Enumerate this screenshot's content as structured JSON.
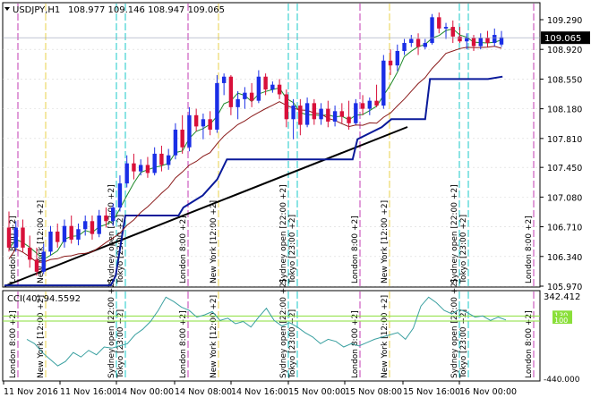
{
  "header": {
    "symbol": "USDJPY,H1",
    "ohlc": "108.977 109.146 108.947 109.065"
  },
  "cci_panel": {
    "label": "CCI(40) 94.5592",
    "scale_top": "342.412",
    "scale_bottom": "-440.000",
    "level_high": "130",
    "level_low": "100"
  },
  "price_axis": {
    "ticks": [
      "109.290",
      "108.920",
      "108.550",
      "108.180",
      "107.810",
      "107.450",
      "107.080",
      "106.710",
      "106.340",
      "105.970"
    ],
    "current_price": "109.065"
  },
  "time_axis": {
    "labels": [
      "11 Nov 2016",
      "11 Nov 16:00",
      "14 Nov 00:00",
      "14 Nov 08:00",
      "14 Nov 16:00",
      "15 Nov 00:00",
      "15 Nov 08:00",
      "15 Nov 16:00",
      "16 Nov 00:00"
    ]
  },
  "session_labels": {
    "london": "London 8:00 +2]",
    "newyork": "New York [12:00 +2]",
    "sydney": "Sydney open [22:00 +2]",
    "tokyo": "Tokyo [23:00 +2]"
  },
  "colors": {
    "bull": "#1a2ee6",
    "bear": "#d8103a",
    "ma_fast": "#1f8a2a",
    "ma_slow": "#8a1a1a",
    "step_line": "#0a1a9a",
    "trendline": "#000000",
    "london_line": "#c33bb3",
    "newyork_line": "#e8d24a",
    "sydney_line": "#18c8c8",
    "cci_line": "#3aa0a0",
    "cci_level": "#8adf3a",
    "price_box": "#000000"
  },
  "chart_data": {
    "type": "candlestick",
    "title": "USDJPY,H1",
    "ylim": [
      105.97,
      109.4
    ],
    "candles": [
      {
        "o": 106.7,
        "h": 106.9,
        "l": 106.4,
        "c": 106.45
      },
      {
        "o": 106.45,
        "h": 106.78,
        "l": 106.4,
        "c": 106.7
      },
      {
        "o": 106.7,
        "h": 106.8,
        "l": 106.4,
        "c": 106.45
      },
      {
        "o": 106.45,
        "h": 106.6,
        "l": 106.2,
        "c": 106.3
      },
      {
        "o": 106.3,
        "h": 106.45,
        "l": 106.1,
        "c": 106.15
      },
      {
        "o": 106.15,
        "h": 106.5,
        "l": 106.12,
        "c": 106.4
      },
      {
        "o": 106.4,
        "h": 106.72,
        "l": 106.35,
        "c": 106.65
      },
      {
        "o": 106.65,
        "h": 106.75,
        "l": 106.45,
        "c": 106.52
      },
      {
        "o": 106.52,
        "h": 106.8,
        "l": 106.45,
        "c": 106.72
      },
      {
        "o": 106.72,
        "h": 106.85,
        "l": 106.5,
        "c": 106.55
      },
      {
        "o": 106.55,
        "h": 106.75,
        "l": 106.48,
        "c": 106.68
      },
      {
        "o": 106.68,
        "h": 106.85,
        "l": 106.6,
        "c": 106.78
      },
      {
        "o": 106.78,
        "h": 106.85,
        "l": 106.55,
        "c": 106.62
      },
      {
        "o": 106.62,
        "h": 106.92,
        "l": 106.58,
        "c": 106.85
      },
      {
        "o": 106.85,
        "h": 106.95,
        "l": 106.7,
        "c": 106.78
      },
      {
        "o": 106.78,
        "h": 107.0,
        "l": 106.72,
        "c": 106.95
      },
      {
        "o": 106.95,
        "h": 107.35,
        "l": 106.9,
        "c": 107.25
      },
      {
        "o": 107.25,
        "h": 107.6,
        "l": 107.2,
        "c": 107.5
      },
      {
        "o": 107.5,
        "h": 107.62,
        "l": 107.3,
        "c": 107.4
      },
      {
        "o": 107.4,
        "h": 107.55,
        "l": 107.35,
        "c": 107.48
      },
      {
        "o": 107.48,
        "h": 107.58,
        "l": 107.32,
        "c": 107.38
      },
      {
        "o": 107.38,
        "h": 107.7,
        "l": 107.35,
        "c": 107.62
      },
      {
        "o": 107.62,
        "h": 107.72,
        "l": 107.4,
        "c": 107.48
      },
      {
        "o": 107.48,
        "h": 107.68,
        "l": 107.42,
        "c": 107.6
      },
      {
        "o": 107.6,
        "h": 108.0,
        "l": 107.55,
        "c": 107.92
      },
      {
        "o": 107.92,
        "h": 108.1,
        "l": 107.62,
        "c": 107.7
      },
      {
        "o": 107.7,
        "h": 108.2,
        "l": 107.65,
        "c": 108.1
      },
      {
        "o": 108.1,
        "h": 108.18,
        "l": 107.9,
        "c": 107.96
      },
      {
        "o": 107.96,
        "h": 108.12,
        "l": 107.8,
        "c": 108.05
      },
      {
        "o": 108.05,
        "h": 108.15,
        "l": 107.85,
        "c": 107.92
      },
      {
        "o": 107.92,
        "h": 108.6,
        "l": 107.88,
        "c": 108.5
      },
      {
        "o": 108.5,
        "h": 108.62,
        "l": 108.35,
        "c": 108.58
      },
      {
        "o": 108.58,
        "h": 108.6,
        "l": 108.1,
        "c": 108.2
      },
      {
        "o": 108.2,
        "h": 108.4,
        "l": 108.05,
        "c": 108.3
      },
      {
        "o": 108.3,
        "h": 108.45,
        "l": 108.18,
        "c": 108.38
      },
      {
        "o": 108.38,
        "h": 108.5,
        "l": 108.2,
        "c": 108.28
      },
      {
        "o": 108.28,
        "h": 108.66,
        "l": 108.25,
        "c": 108.58
      },
      {
        "o": 108.58,
        "h": 108.62,
        "l": 108.35,
        "c": 108.42
      },
      {
        "o": 108.42,
        "h": 108.52,
        "l": 108.38,
        "c": 108.48
      },
      {
        "o": 108.48,
        "h": 108.55,
        "l": 108.3,
        "c": 108.36
      },
      {
        "o": 108.36,
        "h": 108.42,
        "l": 107.95,
        "c": 108.05
      },
      {
        "o": 108.05,
        "h": 108.3,
        "l": 107.8,
        "c": 108.22
      },
      {
        "o": 108.22,
        "h": 108.3,
        "l": 107.85,
        "c": 107.98
      },
      {
        "o": 107.98,
        "h": 108.32,
        "l": 107.95,
        "c": 108.25
      },
      {
        "o": 108.25,
        "h": 108.3,
        "l": 107.98,
        "c": 108.05
      },
      {
        "o": 108.05,
        "h": 108.25,
        "l": 107.98,
        "c": 108.18
      },
      {
        "o": 108.18,
        "h": 108.28,
        "l": 107.95,
        "c": 108.02
      },
      {
        "o": 108.02,
        "h": 108.22,
        "l": 107.96,
        "c": 108.15
      },
      {
        "o": 108.15,
        "h": 108.25,
        "l": 108.0,
        "c": 108.08
      },
      {
        "o": 108.08,
        "h": 108.28,
        "l": 107.92,
        "c": 108.0
      },
      {
        "o": 108.0,
        "h": 108.3,
        "l": 107.98,
        "c": 108.25
      },
      {
        "o": 108.25,
        "h": 108.35,
        "l": 108.1,
        "c": 108.18
      },
      {
        "o": 108.18,
        "h": 108.32,
        "l": 108.1,
        "c": 108.28
      },
      {
        "o": 108.28,
        "h": 108.48,
        "l": 108.2,
        "c": 108.22
      },
      {
        "o": 108.22,
        "h": 108.85,
        "l": 108.18,
        "c": 108.78
      },
      {
        "o": 108.78,
        "h": 108.92,
        "l": 108.6,
        "c": 108.72
      },
      {
        "o": 108.72,
        "h": 108.98,
        "l": 108.65,
        "c": 108.9
      },
      {
        "o": 108.9,
        "h": 109.05,
        "l": 108.85,
        "c": 109.0
      },
      {
        "o": 109.0,
        "h": 109.1,
        "l": 108.95,
        "c": 109.05
      },
      {
        "o": 109.05,
        "h": 109.12,
        "l": 108.85,
        "c": 108.95
      },
      {
        "o": 108.95,
        "h": 109.05,
        "l": 108.92,
        "c": 109.0
      },
      {
        "o": 109.0,
        "h": 109.36,
        "l": 108.98,
        "c": 109.32
      },
      {
        "o": 109.32,
        "h": 109.38,
        "l": 109.12,
        "c": 109.18
      },
      {
        "o": 109.18,
        "h": 109.25,
        "l": 109.05,
        "c": 109.2
      },
      {
        "o": 109.2,
        "h": 109.28,
        "l": 109.0,
        "c": 109.08
      },
      {
        "o": 109.08,
        "h": 109.2,
        "l": 109.0,
        "c": 109.02
      },
      {
        "o": 109.02,
        "h": 109.12,
        "l": 108.92,
        "c": 109.06
      },
      {
        "o": 109.06,
        "h": 109.1,
        "l": 108.9,
        "c": 108.96
      },
      {
        "o": 108.96,
        "h": 109.12,
        "l": 108.92,
        "c": 109.06
      },
      {
        "o": 109.06,
        "h": 109.15,
        "l": 108.95,
        "c": 109.0
      },
      {
        "o": 109.0,
        "h": 109.18,
        "l": 108.96,
        "c": 109.1
      },
      {
        "o": 108.98,
        "h": 109.15,
        "l": 108.95,
        "c": 109.07
      }
    ],
    "step_line": [
      {
        "i": 0,
        "v": 105.98
      },
      {
        "i": 22,
        "v": 105.98
      },
      {
        "i": 23,
        "v": 106.1
      },
      {
        "i": 25,
        "v": 106.85
      },
      {
        "i": 36,
        "v": 106.85
      },
      {
        "i": 37,
        "v": 106.95
      },
      {
        "i": 41,
        "v": 107.1
      },
      {
        "i": 44,
        "v": 107.3
      },
      {
        "i": 46,
        "v": 107.55
      },
      {
        "i": 72,
        "v": 107.55
      },
      {
        "i": 73,
        "v": 107.8
      },
      {
        "i": 78,
        "v": 107.95
      },
      {
        "i": 80,
        "v": 108.05
      },
      {
        "i": 87,
        "v": 108.05
      },
      {
        "i": 88,
        "v": 108.55
      },
      {
        "i": 100,
        "v": 108.55
      },
      {
        "i": 103,
        "v": 108.58
      }
    ],
    "trendline": {
      "from": {
        "i": 0,
        "v": 105.98
      },
      "to": {
        "i": 80,
        "v": 107.92
      }
    },
    "cci": {
      "ylim": [
        -440,
        342.412
      ],
      "levels": [
        130,
        100
      ],
      "values": [
        -80,
        -120,
        -200,
        -260,
        -320,
        -280,
        -200,
        -240,
        -180,
        -220,
        -150,
        -160,
        -140,
        -120,
        -40,
        10,
        80,
        180,
        300,
        260,
        210,
        180,
        120,
        140,
        170,
        90,
        110,
        60,
        80,
        30,
        120,
        200,
        90,
        40,
        70,
        30,
        -20,
        -60,
        -120,
        -80,
        -100,
        -150,
        -120,
        -140,
        -110,
        -80,
        -60,
        -40,
        -20,
        -80,
        20,
        220,
        300,
        250,
        180,
        150,
        190,
        160,
        120,
        130,
        90,
        120,
        94
      ]
    }
  }
}
